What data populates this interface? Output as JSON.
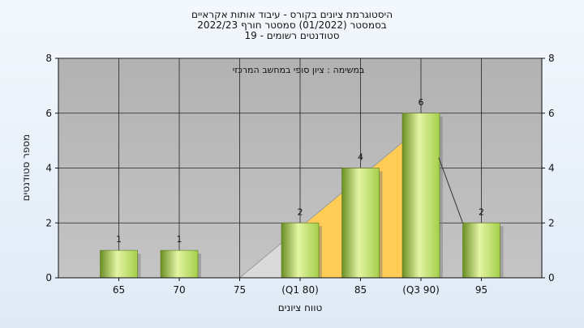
{
  "chart_data": {
    "type": "bar",
    "title_lines": [
      "היסטוגרמת ציונים בקורס - עיבוד אותות אקראיים",
      "בסמסטר  (01/2022)  סמסטר חורף 2022/23",
      "סטודנטים רשומים - 19"
    ],
    "annotation": "במשימה : ציון סופי במחשב המרכזי",
    "xlabel": "טווח ציונים",
    "ylabel": "מספר סטודנטים",
    "categories": [
      "65",
      "70",
      "75",
      "(Q1 80)",
      "85",
      "(Q3 90)",
      "95"
    ],
    "values": [
      1,
      1,
      0,
      2,
      4,
      6,
      2
    ],
    "value_labels": [
      "1",
      "1",
      "",
      "2",
      "4",
      "6",
      "2"
    ],
    "ylim": [
      0,
      8
    ],
    "yticks": [
      "0",
      "2",
      "4",
      "6",
      "8"
    ],
    "grid": true,
    "quartile_band": {
      "from": "75",
      "to": "(Q3 90)",
      "peak_value": 5.5,
      "color": "#ffcc55"
    },
    "colors": {
      "bar_light": "#e4f4a4",
      "bar_mid": "#a4cf4a",
      "bar_dark": "#6a8f24",
      "plot_bg": "#b6b6b6",
      "shadow": "#dedede"
    }
  }
}
